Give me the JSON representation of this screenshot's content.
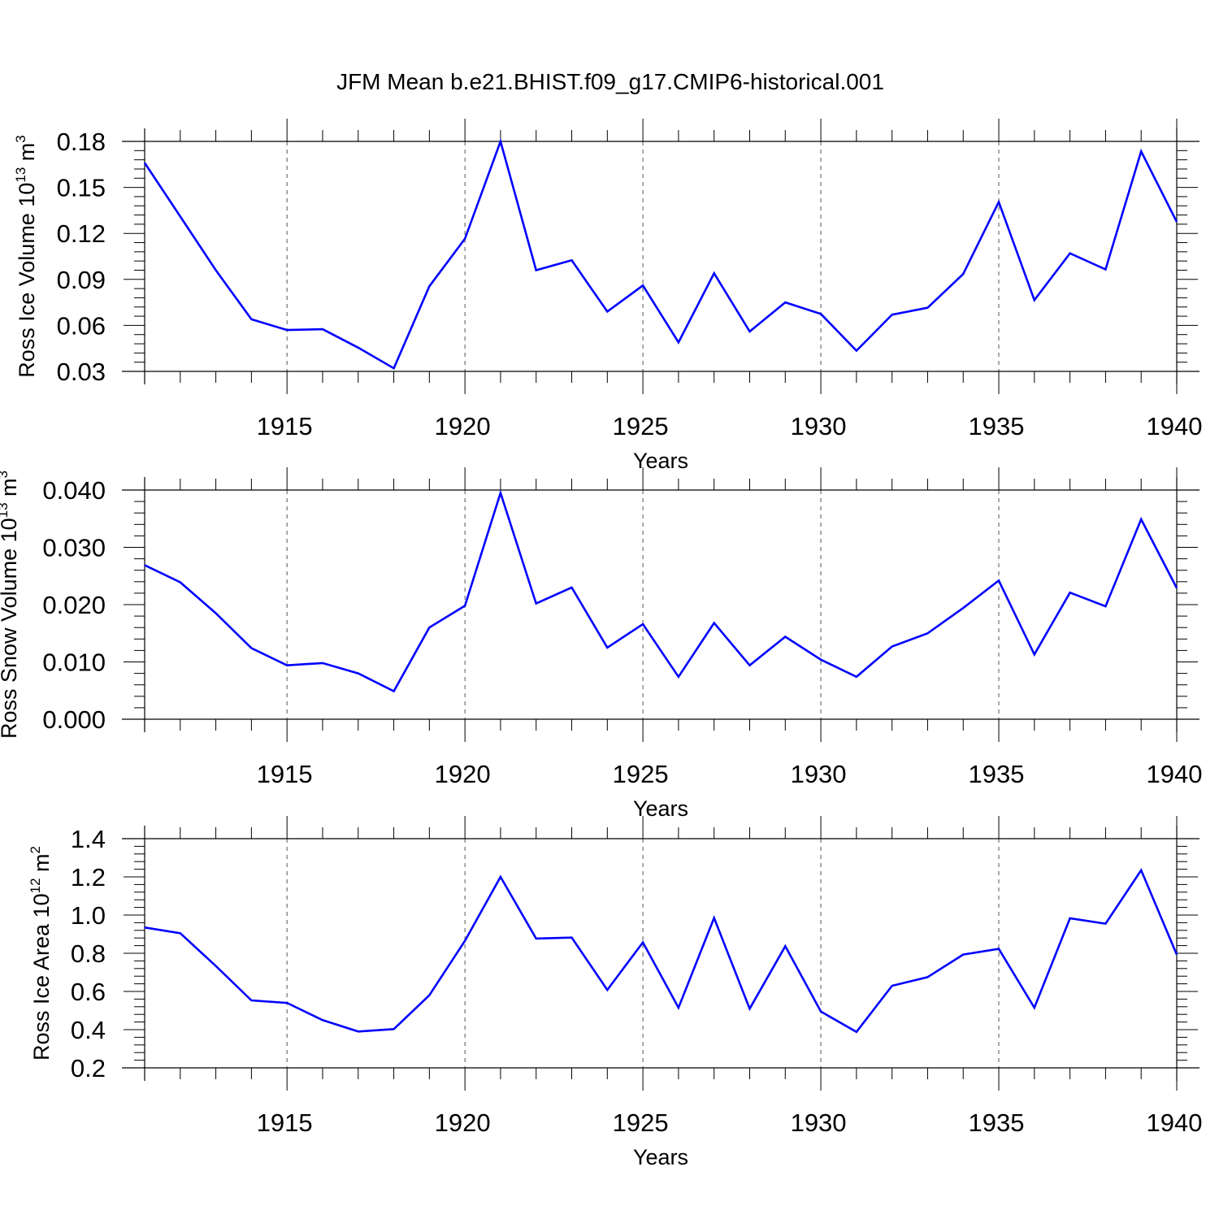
{
  "figure": {
    "title": "JFM Mean b.e21.BHIST.f09_g17.CMIP6-historical.001"
  },
  "chart_data": [
    {
      "type": "line",
      "ylabel": "Ross Ice Volume 10",
      "ylabel_exp": "13",
      "ylabel_unit": " m",
      "ylabel_unit_exp": "3",
      "xlabel": "Years",
      "xlim": [
        1911,
        1940
      ],
      "ylim": [
        0.03,
        0.18
      ],
      "yticks": [
        0.03,
        0.06,
        0.09,
        0.12,
        0.15,
        0.18
      ],
      "ytick_labels": [
        "0.03",
        "0.06",
        "0.09",
        "0.12",
        "0.15",
        "0.18"
      ],
      "xticks": [
        1915,
        1920,
        1925,
        1930,
        1935,
        1940
      ],
      "xtick_labels": [
        "1915",
        "1920",
        "1925",
        "1930",
        "1935",
        "1940"
      ],
      "grid": "vertical-dashed",
      "color": "#0000ff",
      "x": [
        1911,
        1912,
        1913,
        1914,
        1915,
        1916,
        1917,
        1918,
        1919,
        1920,
        1921,
        1922,
        1923,
        1924,
        1925,
        1926,
        1927,
        1928,
        1929,
        1930,
        1931,
        1932,
        1933,
        1934,
        1935,
        1936,
        1937,
        1938,
        1939,
        1940
      ],
      "values": [
        0.166,
        0.131,
        0.096,
        0.064,
        0.057,
        0.0575,
        0.0455,
        0.032,
        0.0855,
        0.1165,
        0.18,
        0.096,
        0.1025,
        0.069,
        0.086,
        0.049,
        0.094,
        0.056,
        0.075,
        0.0675,
        0.0435,
        0.067,
        0.0715,
        0.0935,
        0.1405,
        0.0765,
        0.107,
        0.0965,
        0.1735,
        0.1275
      ]
    },
    {
      "type": "line",
      "ylabel": "Ross Snow Volume 10",
      "ylabel_exp": "13",
      "ylabel_unit": " m",
      "ylabel_unit_exp": "3",
      "xlabel": "Years",
      "xlim": [
        1911,
        1940
      ],
      "ylim": [
        0.0,
        0.04
      ],
      "yticks": [
        0.0,
        0.01,
        0.02,
        0.03,
        0.04
      ],
      "ytick_labels": [
        "0.000",
        "0.010",
        "0.020",
        "0.030",
        "0.040"
      ],
      "xticks": [
        1915,
        1920,
        1925,
        1930,
        1935,
        1940
      ],
      "xtick_labels": [
        "1915",
        "1920",
        "1925",
        "1930",
        "1935",
        "1940"
      ],
      "grid": "vertical-dashed",
      "color": "#0000ff",
      "x": [
        1911,
        1912,
        1913,
        1914,
        1915,
        1916,
        1917,
        1918,
        1919,
        1920,
        1921,
        1922,
        1923,
        1924,
        1925,
        1926,
        1927,
        1928,
        1929,
        1930,
        1931,
        1932,
        1933,
        1934,
        1935,
        1936,
        1937,
        1938,
        1939,
        1940
      ],
      "values": [
        0.0269,
        0.0239,
        0.0185,
        0.0124,
        0.0094,
        0.0098,
        0.008,
        0.0049,
        0.016,
        0.0198,
        0.0395,
        0.0202,
        0.023,
        0.0125,
        0.0166,
        0.0074,
        0.0168,
        0.0094,
        0.0144,
        0.0104,
        0.0074,
        0.0127,
        0.015,
        0.0194,
        0.0242,
        0.0113,
        0.0221,
        0.0197,
        0.0349,
        0.0229
      ]
    },
    {
      "type": "line",
      "ylabel": "Ross Ice Area 10",
      "ylabel_exp": "12",
      "ylabel_unit": " m",
      "ylabel_unit_exp": "2",
      "xlabel": "Years",
      "xlim": [
        1911,
        1940
      ],
      "ylim": [
        0.2,
        1.4
      ],
      "yticks": [
        0.2,
        0.4,
        0.6,
        0.8,
        1.0,
        1.2,
        1.4
      ],
      "ytick_labels": [
        "0.2",
        "0.4",
        "0.6",
        "0.8",
        "1.0",
        "1.2",
        "1.4"
      ],
      "xticks": [
        1915,
        1920,
        1925,
        1930,
        1935,
        1940
      ],
      "xtick_labels": [
        "1915",
        "1920",
        "1925",
        "1930",
        "1935",
        "1940"
      ],
      "grid": "vertical-dashed",
      "color": "#0000ff",
      "x": [
        1911,
        1912,
        1913,
        1914,
        1915,
        1916,
        1917,
        1918,
        1919,
        1920,
        1921,
        1922,
        1923,
        1924,
        1925,
        1926,
        1927,
        1928,
        1929,
        1930,
        1931,
        1932,
        1933,
        1934,
        1935,
        1936,
        1937,
        1938,
        1939,
        1940
      ],
      "values": [
        0.935,
        0.905,
        0.733,
        0.553,
        0.54,
        0.45,
        0.39,
        0.403,
        0.58,
        0.865,
        1.2,
        0.877,
        0.882,
        0.608,
        0.857,
        0.515,
        0.985,
        0.51,
        0.837,
        0.495,
        0.388,
        0.63,
        0.675,
        0.793,
        0.823,
        0.515,
        0.983,
        0.955,
        1.235,
        0.793
      ]
    }
  ]
}
